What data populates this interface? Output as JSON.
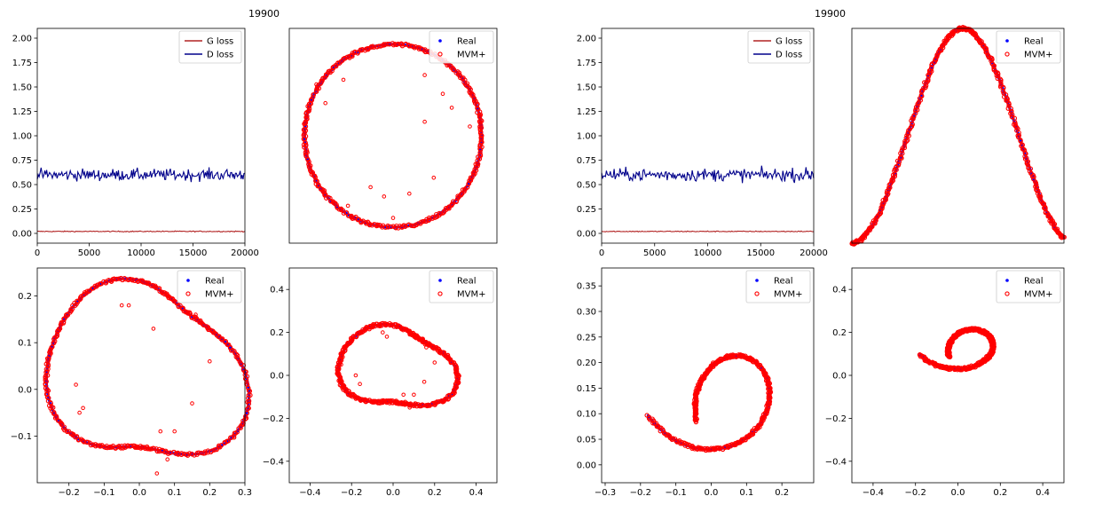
{
  "figures": [
    {
      "step_label": "19900"
    },
    {
      "step_label": "19900"
    }
  ],
  "colors": {
    "g_loss": "#b22222",
    "d_loss": "#00008b",
    "real": "#0000ff",
    "generated": "#ff0000"
  },
  "chart_data": [
    {
      "type": "line",
      "panel": "loss-left",
      "xlim": [
        0,
        20000
      ],
      "ylim": [
        -0.1,
        2.1
      ],
      "xticks": [
        0,
        5000,
        10000,
        15000,
        20000
      ],
      "yticks": [
        0.0,
        0.25,
        0.5,
        0.75,
        1.0,
        1.25,
        1.5,
        1.75,
        2.0
      ],
      "ytick_labels": [
        "0.00",
        "0.25",
        "0.50",
        "0.75",
        "1.00",
        "1.25",
        "1.50",
        "1.75",
        "2.00"
      ],
      "legend": "top-right",
      "series": [
        {
          "name": "G loss",
          "level": 0.02,
          "noise": 0.005,
          "color_key": "g_loss"
        },
        {
          "name": "D loss",
          "level": 0.6,
          "noise": 0.06,
          "color_key": "d_loss"
        }
      ]
    },
    {
      "type": "scatter",
      "panel": "circle",
      "shape": "circle",
      "axes_visible": false,
      "xlim": [
        -1.15,
        1.15
      ],
      "ylim": [
        -1.15,
        1.15
      ],
      "legend": "top-right",
      "series": [
        {
          "name": "Real",
          "color_key": "real"
        },
        {
          "name": "MVM+",
          "color_key": "generated"
        }
      ],
      "outliers": [
        [
          -0.85,
          0.55
        ],
        [
          -0.75,
          0.35
        ],
        [
          -0.55,
          0.6
        ],
        [
          0.35,
          0.65
        ],
        [
          0.55,
          0.45
        ],
        [
          0.65,
          0.3
        ],
        [
          0.35,
          0.15
        ],
        [
          0.85,
          0.1
        ],
        [
          0.45,
          -0.45
        ],
        [
          -0.25,
          -0.55
        ],
        [
          -0.1,
          -0.65
        ],
        [
          0.18,
          -0.62
        ],
        [
          -0.5,
          -0.75
        ],
        [
          0.0,
          -0.88
        ]
      ]
    },
    {
      "type": "scatter",
      "panel": "blob-left",
      "shape": "blob",
      "xlim": [
        -0.29,
        0.3
      ],
      "ylim": [
        -0.2,
        0.26
      ],
      "xticks": [
        -0.2,
        -0.1,
        0.0,
        0.1,
        0.2,
        0.3
      ],
      "xtick_labels": [
        "−0.2",
        "−0.1",
        "0.0",
        "0.1",
        "0.2",
        "0.3"
      ],
      "yticks": [
        -0.1,
        0.0,
        0.1,
        0.2
      ],
      "ytick_labels": [
        "−0.1",
        "0.0",
        "0.1",
        "0.2"
      ],
      "legend": "top-right",
      "series": [
        {
          "name": "Real",
          "color_key": "real"
        },
        {
          "name": "MVM+",
          "color_key": "generated"
        }
      ],
      "outliers": [
        [
          -0.05,
          0.18
        ],
        [
          -0.03,
          0.18
        ],
        [
          0.04,
          0.13
        ],
        [
          0.08,
          0.2
        ],
        [
          0.16,
          0.16
        ],
        [
          0.2,
          0.06
        ],
        [
          -0.18,
          0.01
        ],
        [
          -0.16,
          -0.04
        ],
        [
          -0.17,
          -0.05
        ],
        [
          0.06,
          -0.09
        ],
        [
          0.1,
          -0.09
        ],
        [
          0.15,
          -0.03
        ],
        [
          0.05,
          -0.18
        ],
        [
          0.08,
          -0.15
        ]
      ]
    },
    {
      "type": "scatter",
      "panel": "blob-small",
      "shape": "blob",
      "xlim": [
        -0.5,
        0.5
      ],
      "ylim": [
        -0.5,
        0.5
      ],
      "xticks": [
        -0.4,
        -0.2,
        0.0,
        0.2,
        0.4
      ],
      "xtick_labels": [
        "−0.4",
        "−0.2",
        "0.0",
        "0.2",
        "0.4"
      ],
      "yticks": [
        -0.4,
        -0.2,
        0.0,
        0.2,
        0.4
      ],
      "ytick_labels": [
        "−0.4",
        "−0.2",
        "0.0",
        "0.2",
        "0.4"
      ],
      "legend": "top-right",
      "series": [
        {
          "name": "Real",
          "color_key": "real"
        },
        {
          "name": "MVM+",
          "color_key": "generated"
        }
      ],
      "outliers": [
        [
          -0.05,
          0.2
        ],
        [
          -0.03,
          0.18
        ],
        [
          0.08,
          0.19
        ],
        [
          0.16,
          0.13
        ],
        [
          0.2,
          0.06
        ],
        [
          -0.18,
          0.0
        ],
        [
          -0.16,
          -0.04
        ],
        [
          0.05,
          -0.09
        ],
        [
          0.1,
          -0.09
        ],
        [
          0.15,
          -0.03
        ],
        [
          0.08,
          -0.15
        ],
        [
          -0.25,
          0.05
        ]
      ]
    },
    {
      "type": "line",
      "panel": "loss-right",
      "xlim": [
        0,
        20000
      ],
      "ylim": [
        -0.1,
        2.1
      ],
      "xticks": [
        0,
        5000,
        10000,
        15000,
        20000
      ],
      "yticks": [
        0.0,
        0.25,
        0.5,
        0.75,
        1.0,
        1.25,
        1.5,
        1.75,
        2.0
      ],
      "ytick_labels": [
        "0.00",
        "0.25",
        "0.50",
        "0.75",
        "1.00",
        "1.25",
        "1.50",
        "1.75",
        "2.00"
      ],
      "legend": "top-right",
      "series": [
        {
          "name": "G loss",
          "level": 0.02,
          "noise": 0.005,
          "color_key": "g_loss"
        },
        {
          "name": "D loss",
          "level": 0.6,
          "noise": 0.065,
          "color_key": "d_loss"
        }
      ]
    },
    {
      "type": "scatter",
      "panel": "bell",
      "shape": "bell",
      "axes_visible": false,
      "xlim": [
        -1.0,
        1.0
      ],
      "ylim": [
        0.0,
        1.0
      ],
      "legend": "top-right",
      "series": [
        {
          "name": "Real",
          "color_key": "real"
        },
        {
          "name": "MVM+",
          "color_key": "generated"
        }
      ]
    },
    {
      "type": "scatter",
      "panel": "spiral-left",
      "shape": "spiral",
      "xlim": [
        -0.31,
        0.29
      ],
      "ylim": [
        -0.035,
        0.385
      ],
      "xticks": [
        -0.3,
        -0.2,
        -0.1,
        0.0,
        0.1,
        0.2
      ],
      "xtick_labels": [
        "−0.3",
        "−0.2",
        "−0.1",
        "0.0",
        "0.1",
        "0.2"
      ],
      "yticks": [
        0.0,
        0.05,
        0.1,
        0.15,
        0.2,
        0.25,
        0.3,
        0.35
      ],
      "ytick_labels": [
        "0.00",
        "0.05",
        "0.10",
        "0.15",
        "0.20",
        "0.25",
        "0.30",
        "0.35"
      ],
      "legend": "top-right",
      "series": [
        {
          "name": "Real",
          "color_key": "real"
        },
        {
          "name": "MVM+",
          "color_key": "generated"
        }
      ]
    },
    {
      "type": "scatter",
      "panel": "spiral-small",
      "shape": "spiral",
      "xlim": [
        -0.5,
        0.5
      ],
      "ylim": [
        -0.5,
        0.5
      ],
      "xticks": [
        -0.4,
        -0.2,
        0.0,
        0.2,
        0.4
      ],
      "xtick_labels": [
        "−0.4",
        "−0.2",
        "0.0",
        "0.2",
        "0.4"
      ],
      "yticks": [
        -0.4,
        -0.2,
        0.0,
        0.2,
        0.4
      ],
      "ytick_labels": [
        "−0.4",
        "−0.2",
        "0.0",
        "0.2",
        "0.4"
      ],
      "legend": "top-right",
      "series": [
        {
          "name": "Real",
          "color_key": "real"
        },
        {
          "name": "MVM+",
          "color_key": "generated"
        }
      ]
    }
  ]
}
